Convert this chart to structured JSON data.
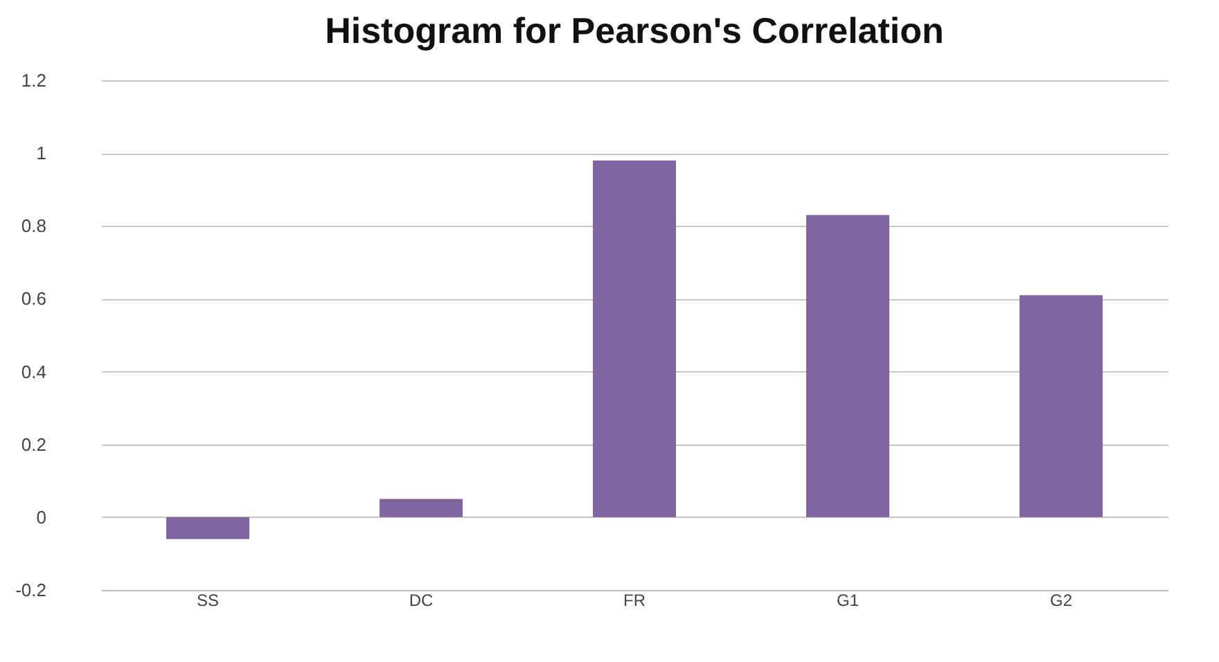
{
  "chart_data": {
    "type": "bar",
    "title": "Histogram for Pearson's Correlation",
    "categories": [
      "SS",
      "DC",
      "FR",
      "G1",
      "G2"
    ],
    "values": [
      -0.06,
      0.05,
      0.98,
      0.83,
      0.61
    ],
    "color": "#8064a2",
    "ylim": [
      -0.2,
      1.2
    ],
    "yticks": [
      -0.2,
      0,
      0.2,
      0.4,
      0.6,
      0.8,
      1,
      1.2
    ],
    "grid": "y"
  }
}
